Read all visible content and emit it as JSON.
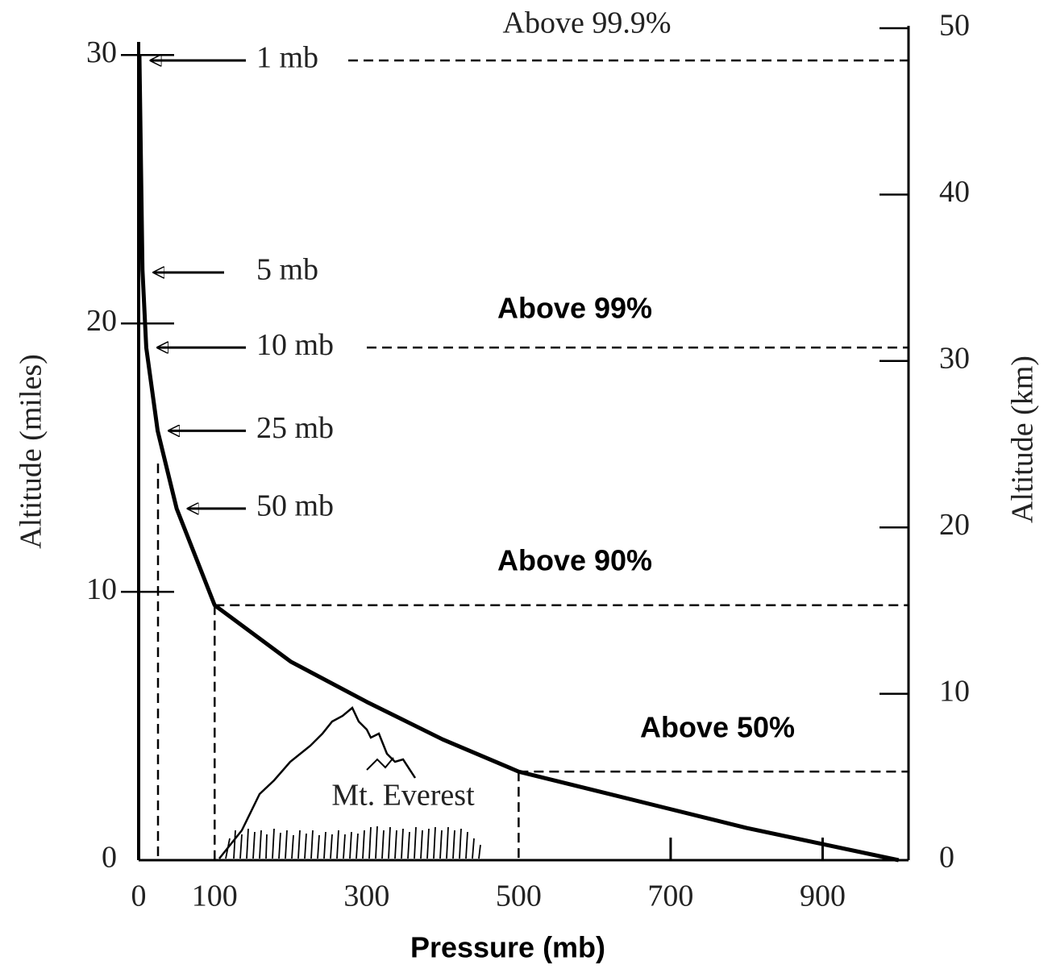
{
  "chart_data": {
    "type": "line",
    "x_label": "Pressure (mb)",
    "y_label": "Altitude (miles)",
    "y2_label": "Altitude (km)",
    "xlim": [
      0,
      1013
    ],
    "ylim": [
      0,
      31
    ],
    "y2lim": [
      0,
      50
    ],
    "xticks": [
      0,
      100,
      300,
      500,
      700,
      900
    ],
    "yticks": [
      0,
      10,
      20,
      30
    ],
    "y2ticks": [
      0,
      10,
      20,
      30,
      40,
      50
    ],
    "series": [
      {
        "color": "#000000",
        "x": [
          1,
          5,
          10,
          25,
          50,
          100,
          200,
          300,
          400,
          500,
          600,
          700,
          800,
          900,
          1000
        ],
        "values": [
          30,
          22,
          19.1,
          16,
          13.1,
          9.5,
          7.4,
          5.9,
          4.5,
          3.3,
          2.6,
          1.9,
          1.2,
          0.6,
          0
        ]
      }
    ],
    "annotations": [
      {
        "text": "1 mb",
        "x": 1,
        "y": 29.8
      },
      {
        "text": "5 mb",
        "x": 5,
        "y": 21.9
      },
      {
        "text": "10 mb",
        "x": 10,
        "y": 19.1
      },
      {
        "text": "25 mb",
        "x": 25,
        "y": 16
      },
      {
        "text": "50 mb",
        "x": 50,
        "y": 13.1
      }
    ],
    "levels": [
      {
        "text": "Above 99.9%",
        "x": 1,
        "y": 29.8
      },
      {
        "text": "Above 99%",
        "x": 10,
        "y": 19.1
      },
      {
        "text": "Above 90%",
        "x": 100,
        "y": 9.5
      },
      {
        "text": "Above 50%",
        "x": 500,
        "y": 3.3
      }
    ],
    "landmark": {
      "text": "Mt. Everest"
    }
  }
}
